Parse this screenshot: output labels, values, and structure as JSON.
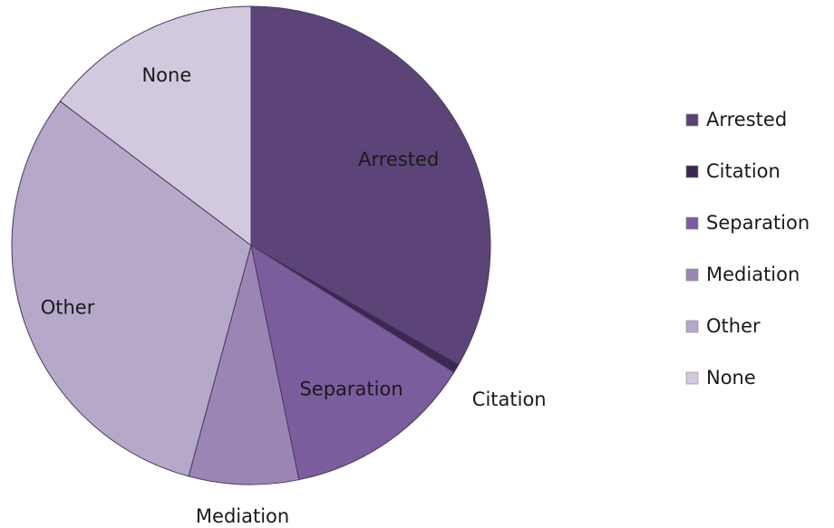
{
  "chart_data": {
    "type": "pie",
    "categories": [
      "Arrested",
      "Citation",
      "Separation",
      "Mediation",
      "Other",
      "None"
    ],
    "values": [
      33.3,
      0.6,
      12.9,
      7.4,
      31.1,
      14.7
    ],
    "colors": [
      "#5d4478",
      "#3b2752",
      "#7b5c9c",
      "#9b85b5",
      "#b5a8c9",
      "#d3c9df"
    ],
    "legend": "right"
  }
}
